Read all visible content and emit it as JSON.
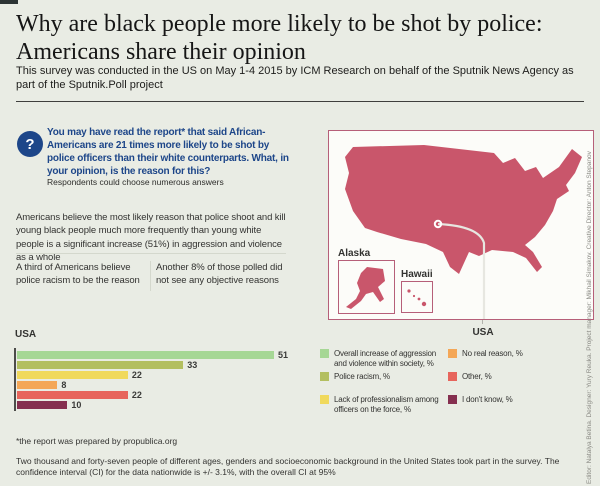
{
  "header": {
    "title": "Why are black people more likely to be shot by police: Americans share their opinion",
    "subtitle": "This survey was conducted in the US on May 1-4 2015 by ICM Research on behalf of the Sputnik News Agency as part of the Sputnik.Poll project"
  },
  "question": {
    "icon": "question-mark-icon",
    "icon_glyph": "?",
    "text": "You may have read the report* that said African-Americans are 21 times more likely to be shot by police officers than their white counterparts. What, in your opinion, is the reason for this?",
    "note": "Respondents could choose numerous answers"
  },
  "findings": {
    "main": "Americans believe the most likely reason that police shoot and kill young black people much more frequently than young white people is a significant increase (51%) in aggression and violence as a whole",
    "left": "A third of Americans believe police racism to be the reason",
    "right": "Another 8% of those polled did not see any objective reasons"
  },
  "map": {
    "alaska_label": "Alaska",
    "hawaii_label": "Hawaii",
    "callout_label": "USA",
    "fill_color": "#c9566b",
    "border_color": "#b65f79"
  },
  "chart_data": {
    "type": "bar",
    "orientation": "horizontal",
    "title": "USA",
    "categories": [
      "Overall increase of aggression and violence within society, %",
      "Police racism, %",
      "Lack of professionalism among officers on the force, %",
      "No real reason, %",
      "Other, %",
      "I don't know, %"
    ],
    "values": [
      51,
      33,
      22,
      8,
      22,
      10
    ],
    "colors": [
      "#a6d795",
      "#b3bf60",
      "#f0d95c",
      "#f4a757",
      "#e7655c",
      "#852f4f"
    ],
    "xlim": [
      0,
      51
    ],
    "value_labels_shown": true,
    "grid": false,
    "legend_position": "right"
  },
  "legend": {
    "left": [
      {
        "label": "Overall increase of aggression and violence within society, %",
        "color": "#a6d795"
      },
      {
        "label": "Police racism, %",
        "color": "#b3bf60"
      },
      {
        "label": "Lack of professionalism among officers on the force, %",
        "color": "#f0d95c"
      }
    ],
    "right": [
      {
        "label": "No real reason, %",
        "color": "#f4a757"
      },
      {
        "label": "Other, %",
        "color": "#e7655c"
      },
      {
        "label": "I don't know, %",
        "color": "#852f4f"
      }
    ]
  },
  "footer": {
    "footnote": "*the report was prepared by propublica.org",
    "methodology": "Two thousand and forty-seven people of different ages, genders and socioeconomic background in the United States took part in the survey. The confidence interval (CI) for the data nationwide is +/- 3.1%, with the overall CI at 95%"
  },
  "credits": "Editor: Natalya Betina. Designer: Yury Reuka. Project manager: Mikhail Simakov. Creative Director: Anton Stepanov"
}
